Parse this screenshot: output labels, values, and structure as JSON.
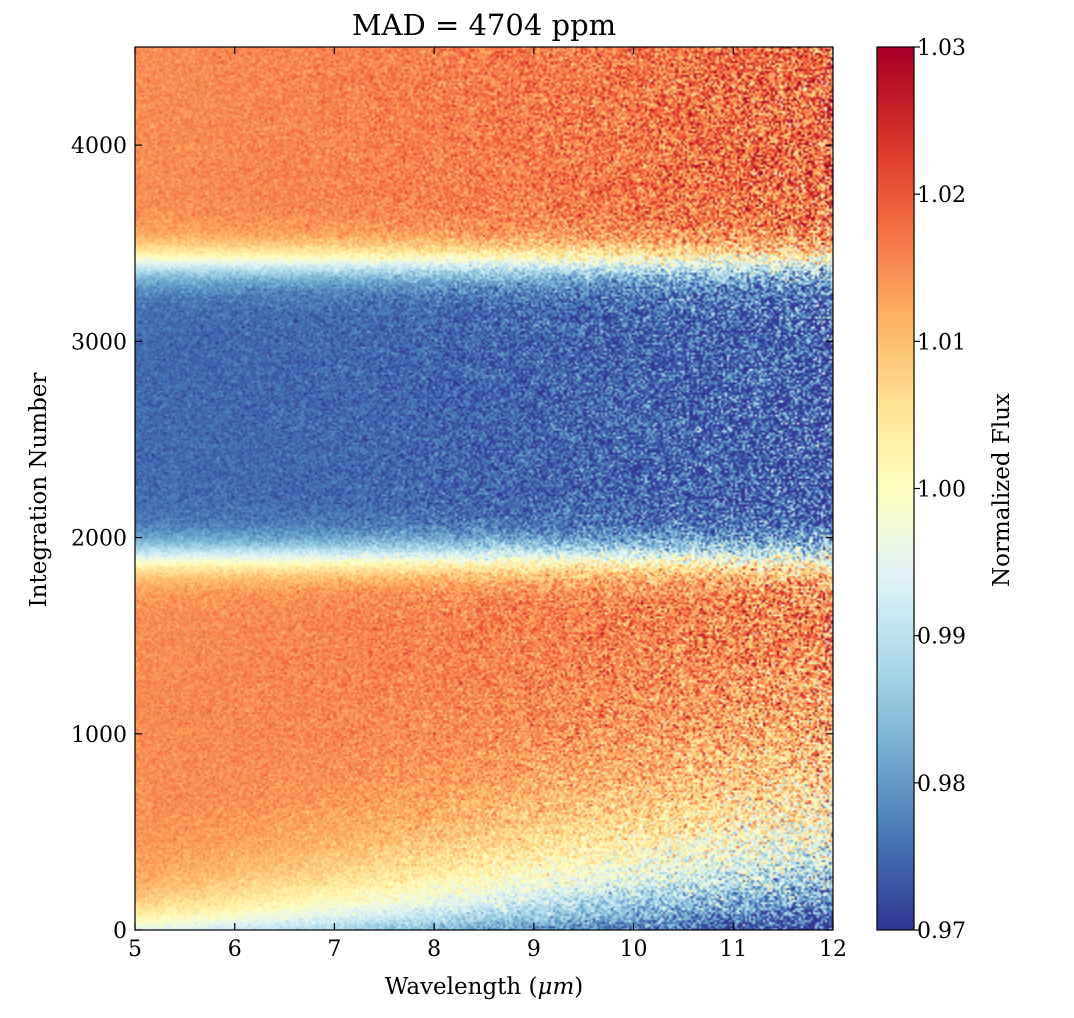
{
  "chart_data": {
    "type": "heatmap",
    "title": "MAD = 4704 ppm",
    "xlabel": "Wavelength",
    "xlabel_unit": "μm",
    "ylabel": "Integration Number",
    "colorbar_label": "Normalized Flux",
    "xlim": [
      5,
      12
    ],
    "ylim": [
      0,
      4500
    ],
    "clim": [
      0.97,
      1.03
    ],
    "colormap": "RdYlBu_r",
    "x_ticks": [
      5,
      6,
      7,
      8,
      9,
      10,
      11,
      12
    ],
    "x_tick_labels": [
      "5",
      "6",
      "7",
      "8",
      "9",
      "10",
      "11",
      "12"
    ],
    "y_ticks": [
      0,
      1000,
      2000,
      3000,
      4000
    ],
    "y_tick_labels": [
      "0",
      "1000",
      "2000",
      "3000",
      "4000"
    ],
    "colorbar_ticks": [
      0.97,
      0.98,
      0.99,
      1.0,
      1.01,
      1.02,
      1.03
    ],
    "colorbar_tick_labels": [
      "0.97",
      "0.98",
      "0.99",
      "1.00",
      "1.01",
      "1.02",
      "1.03"
    ],
    "grid": false,
    "features": {
      "eclipse_integrations": [
        1900,
        3400
      ],
      "in_eclipse_flux": 0.975,
      "out_of_eclipse_flux": 1.015,
      "ramp_end_integration": 400,
      "noise_increases_with_wavelength": true
    }
  }
}
